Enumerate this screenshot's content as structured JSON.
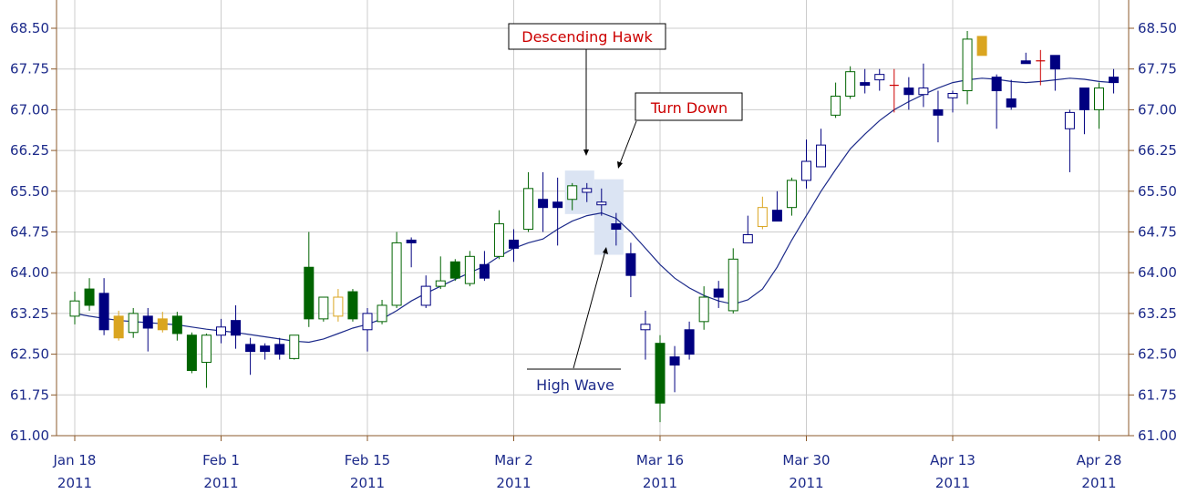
{
  "chart_data": {
    "type": "candlestick",
    "ylim": [
      61.0,
      68.75
    ],
    "y_ticks": [
      "61.00",
      "61.75",
      "62.50",
      "63.25",
      "64.00",
      "64.75",
      "65.50",
      "66.25",
      "67.00",
      "67.75",
      "68.50"
    ],
    "x_ticks": [
      {
        "top": "Jan 18",
        "bottom": "2011",
        "index": 0
      },
      {
        "top": "Feb 1",
        "bottom": "2011",
        "index": 10
      },
      {
        "top": "Feb 15",
        "bottom": "2011",
        "index": 20
      },
      {
        "top": "Mar 2",
        "bottom": "2011",
        "index": 30
      },
      {
        "top": "Mar 16",
        "bottom": "2011",
        "index": 40
      },
      {
        "top": "Mar 30",
        "bottom": "2011",
        "index": 50
      },
      {
        "top": "Apr 13",
        "bottom": "2011",
        "index": 60
      },
      {
        "top": "Apr 28",
        "bottom": "2011",
        "index": 70
      }
    ],
    "colors": {
      "bull_up": "#006400",
      "bull_down": "#000080",
      "bear_up": "#ffffff",
      "bear_down": "#000080",
      "neutral": "#daa520",
      "doji": "#cc0000",
      "ma": "#1c2a8a",
      "grid": "#cccccc",
      "axis": "#8b5a2b",
      "highlight": "#dbe4f3"
    },
    "candles": [
      {
        "o": 63.2,
        "h": 63.65,
        "l": 63.05,
        "c": 63.48,
        "k": "hollow_green"
      },
      {
        "o": 63.4,
        "h": 63.9,
        "l": 63.3,
        "c": 63.7,
        "k": "filled_green"
      },
      {
        "o": 63.62,
        "h": 63.9,
        "l": 62.85,
        "c": 62.95,
        "k": "filled_navy"
      },
      {
        "o": 63.2,
        "h": 63.3,
        "l": 62.75,
        "c": 62.8,
        "k": "filled_gold"
      },
      {
        "o": 62.9,
        "h": 63.35,
        "l": 62.8,
        "c": 63.25,
        "k": "hollow_green"
      },
      {
        "o": 63.2,
        "h": 63.35,
        "l": 62.55,
        "c": 62.98,
        "k": "filled_navy"
      },
      {
        "o": 63.15,
        "h": 63.28,
        "l": 62.9,
        "c": 62.95,
        "k": "filled_gold"
      },
      {
        "o": 63.2,
        "h": 63.28,
        "l": 62.75,
        "c": 62.88,
        "k": "filled_green"
      },
      {
        "o": 62.85,
        "h": 62.9,
        "l": 62.15,
        "c": 62.2,
        "k": "filled_green"
      },
      {
        "o": 62.35,
        "h": 62.88,
        "l": 61.88,
        "c": 62.85,
        "k": "hollow_green"
      },
      {
        "o": 62.85,
        "h": 63.15,
        "l": 62.7,
        "c": 63.0,
        "k": "hollow_navy"
      },
      {
        "o": 63.12,
        "h": 63.4,
        "l": 62.6,
        "c": 62.85,
        "k": "filled_navy"
      },
      {
        "o": 62.68,
        "h": 62.8,
        "l": 62.12,
        "c": 62.55,
        "k": "filled_navy"
      },
      {
        "o": 62.65,
        "h": 62.7,
        "l": 62.4,
        "c": 62.55,
        "k": "filled_navy"
      },
      {
        "o": 62.68,
        "h": 62.8,
        "l": 62.4,
        "c": 62.5,
        "k": "filled_navy"
      },
      {
        "o": 62.42,
        "h": 62.85,
        "l": 62.4,
        "c": 62.85,
        "k": "hollow_green"
      },
      {
        "o": 63.15,
        "h": 64.75,
        "l": 63.0,
        "c": 64.1,
        "k": "filled_green"
      },
      {
        "o": 63.15,
        "h": 63.55,
        "l": 63.1,
        "c": 63.55,
        "k": "hollow_green"
      },
      {
        "o": 63.2,
        "h": 63.7,
        "l": 63.1,
        "c": 63.55,
        "k": "hollow_gold"
      },
      {
        "o": 63.65,
        "h": 63.7,
        "l": 63.1,
        "c": 63.15,
        "k": "filled_green"
      },
      {
        "o": 62.95,
        "h": 63.35,
        "l": 62.55,
        "c": 63.25,
        "k": "hollow_navy"
      },
      {
        "o": 63.1,
        "h": 63.5,
        "l": 63.05,
        "c": 63.4,
        "k": "hollow_green"
      },
      {
        "o": 63.4,
        "h": 64.75,
        "l": 63.35,
        "c": 64.55,
        "k": "hollow_green"
      },
      {
        "o": 64.6,
        "h": 64.65,
        "l": 64.1,
        "c": 64.55,
        "k": "filled_navy"
      },
      {
        "o": 63.4,
        "h": 63.95,
        "l": 63.35,
        "c": 63.75,
        "k": "hollow_navy"
      },
      {
        "o": 63.75,
        "h": 64.3,
        "l": 63.7,
        "c": 63.85,
        "k": "hollow_green"
      },
      {
        "o": 64.2,
        "h": 64.25,
        "l": 63.85,
        "c": 63.9,
        "k": "filled_green"
      },
      {
        "o": 63.8,
        "h": 64.4,
        "l": 63.75,
        "c": 64.3,
        "k": "hollow_green"
      },
      {
        "o": 64.15,
        "h": 64.4,
        "l": 63.85,
        "c": 63.9,
        "k": "filled_navy"
      },
      {
        "o": 64.3,
        "h": 65.15,
        "l": 64.25,
        "c": 64.9,
        "k": "hollow_green"
      },
      {
        "o": 64.6,
        "h": 64.8,
        "l": 64.2,
        "c": 64.45,
        "k": "filled_navy"
      },
      {
        "o": 64.8,
        "h": 65.85,
        "l": 64.75,
        "c": 65.55,
        "k": "hollow_green"
      },
      {
        "o": 65.35,
        "h": 65.85,
        "l": 64.75,
        "c": 65.2,
        "k": "filled_navy"
      },
      {
        "o": 65.3,
        "h": 65.75,
        "l": 64.5,
        "c": 65.2,
        "k": "filled_navy"
      },
      {
        "o": 65.35,
        "h": 65.65,
        "l": 65.15,
        "c": 65.6,
        "k": "hollow_green"
      },
      {
        "o": 65.55,
        "h": 65.65,
        "l": 65.3,
        "c": 65.48,
        "k": "hollow_navy"
      },
      {
        "o": 65.3,
        "h": 65.55,
        "l": 65.05,
        "c": 65.25,
        "k": "hollow_navy"
      },
      {
        "o": 64.9,
        "h": 65.1,
        "l": 64.5,
        "c": 64.8,
        "k": "filled_navy"
      },
      {
        "o": 64.35,
        "h": 64.55,
        "l": 63.55,
        "c": 63.95,
        "k": "filled_navy"
      },
      {
        "o": 63.05,
        "h": 63.3,
        "l": 62.4,
        "c": 62.95,
        "k": "hollow_navy"
      },
      {
        "o": 62.7,
        "h": 62.85,
        "l": 61.25,
        "c": 61.6,
        "k": "filled_green"
      },
      {
        "o": 62.45,
        "h": 62.65,
        "l": 61.8,
        "c": 62.3,
        "k": "filled_navy"
      },
      {
        "o": 62.5,
        "h": 63.1,
        "l": 62.4,
        "c": 62.95,
        "k": "filled_navy"
      },
      {
        "o": 63.1,
        "h": 63.75,
        "l": 62.95,
        "c": 63.55,
        "k": "hollow_green"
      },
      {
        "o": 63.7,
        "h": 63.85,
        "l": 63.35,
        "c": 63.55,
        "k": "filled_navy"
      },
      {
        "o": 63.3,
        "h": 64.45,
        "l": 63.25,
        "c": 64.25,
        "k": "hollow_green"
      },
      {
        "o": 64.55,
        "h": 65.05,
        "l": 64.55,
        "c": 64.7,
        "k": "hollow_navy"
      },
      {
        "o": 64.85,
        "h": 65.4,
        "l": 64.8,
        "c": 65.2,
        "k": "hollow_gold"
      },
      {
        "o": 65.15,
        "h": 65.5,
        "l": 64.95,
        "c": 64.95,
        "k": "filled_navy"
      },
      {
        "o": 65.2,
        "h": 65.75,
        "l": 65.05,
        "c": 65.7,
        "k": "hollow_green"
      },
      {
        "o": 65.7,
        "h": 66.45,
        "l": 65.55,
        "c": 66.05,
        "k": "hollow_navy"
      },
      {
        "o": 65.95,
        "h": 66.65,
        "l": 65.95,
        "c": 66.35,
        "k": "hollow_navy"
      },
      {
        "o": 66.9,
        "h": 67.5,
        "l": 66.85,
        "c": 67.25,
        "k": "hollow_green"
      },
      {
        "o": 67.25,
        "h": 67.8,
        "l": 67.2,
        "c": 67.7,
        "k": "hollow_green"
      },
      {
        "o": 67.48,
        "h": 67.75,
        "l": 67.3,
        "c": 67.5,
        "k": "filled_navy"
      },
      {
        "o": 67.55,
        "h": 67.75,
        "l": 67.35,
        "c": 67.65,
        "k": "hollow_navy"
      },
      {
        "o": 67.45,
        "h": 67.75,
        "l": 66.95,
        "c": 67.45,
        "k": "doji"
      },
      {
        "o": 67.4,
        "h": 67.6,
        "l": 67.0,
        "c": 67.28,
        "k": "filled_navy"
      },
      {
        "o": 67.28,
        "h": 67.85,
        "l": 67.05,
        "c": 67.4,
        "k": "hollow_navy"
      },
      {
        "o": 67.0,
        "h": 67.35,
        "l": 66.4,
        "c": 66.9,
        "k": "filled_navy"
      },
      {
        "o": 67.22,
        "h": 67.35,
        "l": 66.95,
        "c": 67.3,
        "k": "hollow_navy"
      },
      {
        "o": 67.35,
        "h": 68.45,
        "l": 67.1,
        "c": 68.3,
        "k": "hollow_green"
      },
      {
        "o": 68.35,
        "h": 68.35,
        "l": 68.0,
        "c": 68.0,
        "k": "filled_gold"
      },
      {
        "o": 67.6,
        "h": 67.65,
        "l": 66.65,
        "c": 67.35,
        "k": "filled_navy"
      },
      {
        "o": 67.2,
        "h": 67.55,
        "l": 67.0,
        "c": 67.05,
        "k": "filled_navy"
      },
      {
        "o": 67.9,
        "h": 68.05,
        "l": 67.85,
        "c": 67.85,
        "k": "filled_navy"
      },
      {
        "o": 67.9,
        "h": 68.1,
        "l": 67.45,
        "c": 67.9,
        "k": "doji"
      },
      {
        "o": 68.0,
        "h": 68.0,
        "l": 67.35,
        "c": 67.75,
        "k": "filled_navy"
      },
      {
        "o": 66.65,
        "h": 67.0,
        "l": 65.85,
        "c": 66.95,
        "k": "hollow_navy"
      },
      {
        "o": 67.4,
        "h": 67.4,
        "l": 66.55,
        "c": 67.0,
        "k": "filled_navy"
      },
      {
        "o": 67.0,
        "h": 67.5,
        "l": 66.65,
        "c": 67.4,
        "k": "hollow_green"
      },
      {
        "o": 67.6,
        "h": 67.75,
        "l": 67.3,
        "c": 67.5,
        "k": "filled_navy"
      }
    ],
    "ma": [
      63.25,
      63.2,
      63.16,
      63.12,
      63.1,
      63.08,
      63.06,
      63.04,
      63.0,
      62.96,
      62.93,
      62.9,
      62.86,
      62.82,
      62.78,
      62.74,
      62.72,
      62.78,
      62.88,
      62.98,
      63.05,
      63.15,
      63.3,
      63.48,
      63.62,
      63.75,
      63.88,
      64.0,
      64.12,
      64.3,
      64.45,
      64.55,
      64.62,
      64.8,
      64.95,
      65.05,
      65.1,
      65.0,
      64.75,
      64.45,
      64.15,
      63.9,
      63.72,
      63.58,
      63.48,
      63.42,
      63.5,
      63.7,
      64.1,
      64.6,
      65.05,
      65.5,
      65.9,
      66.28,
      66.55,
      66.8,
      67.0,
      67.15,
      67.28,
      67.4,
      67.5,
      67.55,
      67.58,
      67.56,
      67.52,
      67.5,
      67.52,
      67.55,
      67.58,
      67.56,
      67.52,
      67.5
    ],
    "annotations": [
      {
        "label": "Descending Hawk",
        "color": "#cc0000"
      },
      {
        "label": "Turn Down",
        "color": "#cc0000"
      },
      {
        "label": "High Wave",
        "color": "#1c2a8a"
      }
    ]
  }
}
